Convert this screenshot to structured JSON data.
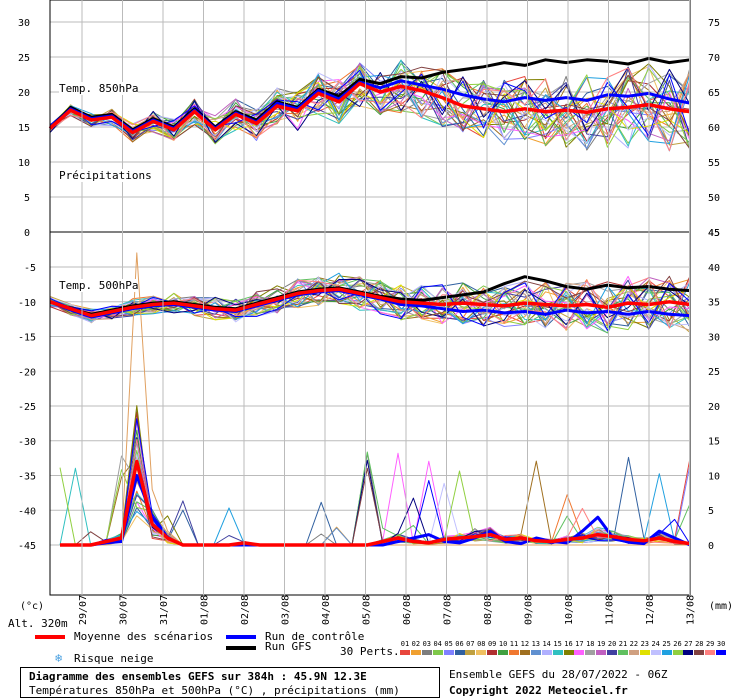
{
  "chart_data": {
    "type": "line",
    "x_dates": [
      "29/07",
      "30/07",
      "31/07",
      "01/08",
      "02/08",
      "03/08",
      "04/08",
      "05/08",
      "06/08",
      "07/08",
      "08/08",
      "09/08",
      "10/08",
      "11/08",
      "12/08",
      "13/08"
    ],
    "upper_panel": {
      "label": "Temp. 850hPa",
      "left_ticks": [
        "30",
        "25",
        "20",
        "15",
        "10",
        "5",
        "0"
      ],
      "right_ticks": [
        "75",
        "70",
        "65",
        "60",
        "55",
        "50",
        "45"
      ],
      "ylim_left": [
        0,
        30
      ],
      "mean": [
        14.8,
        17.4,
        16,
        16.4,
        14.2,
        15.8,
        14.6,
        17.2,
        14.6,
        16.8,
        15.5,
        18,
        17.3,
        19.8,
        18.6,
        21.2,
        20,
        20.8,
        20.2,
        19.2,
        18,
        17.6,
        17.2,
        17.6,
        17.2,
        17.4,
        17.1,
        17.6,
        17.8,
        18.2,
        17.6,
        17.2
      ],
      "control": [
        14.8,
        17.6,
        16.2,
        16.6,
        14.4,
        16,
        14.8,
        17.4,
        14.8,
        17,
        15.7,
        18.4,
        17.6,
        20.2,
        19,
        21.4,
        20.6,
        21.6,
        21,
        20.4,
        19.6,
        19,
        18.6,
        19.2,
        18.8,
        19.2,
        18.8,
        19.6,
        19.4,
        19.8,
        19,
        18.4
      ],
      "gfs": [
        14.8,
        17.8,
        16.4,
        16.8,
        14.6,
        16.2,
        15,
        17.6,
        15,
        17.2,
        16,
        18.6,
        17.8,
        20.4,
        19.4,
        21.8,
        21.2,
        22.2,
        22,
        22.8,
        23.2,
        23.6,
        24.2,
        23.8,
        24.6,
        24.2,
        24.6,
        24.4,
        24,
        24.8,
        24.2,
        24.6
      ]
    },
    "lower_panel": {
      "label_temp": "Temp. 500hPa",
      "label_precip": "Précipitations",
      "left_ticks": [
        "-5",
        "-10",
        "-15",
        "-20",
        "-25",
        "-30",
        "-35",
        "-40",
        "-45"
      ],
      "right_ticks": [
        "45",
        "40",
        "35",
        "30",
        "25",
        "20",
        "15",
        "10",
        "5",
        "0"
      ],
      "ylim_left": [
        -45,
        -5
      ],
      "ylim_right_mm": [
        0,
        45
      ],
      "mean_t500": [
        -10,
        -11,
        -12,
        -11.4,
        -10.8,
        -10.4,
        -10.2,
        -10.6,
        -11,
        -11.2,
        -10.4,
        -9.6,
        -8.8,
        -8.4,
        -8.2,
        -8.8,
        -9.4,
        -10,
        -10.2,
        -10.4,
        -10.2,
        -10.4,
        -10.6,
        -10.2,
        -10.4,
        -10.6,
        -10.4,
        -10.8,
        -10.2,
        -10.4,
        -10,
        -10.4
      ],
      "control_t500": [
        -10,
        -11.2,
        -12.2,
        -11.6,
        -11,
        -10.6,
        -10.4,
        -10.8,
        -11.2,
        -11.4,
        -10.6,
        -9.8,
        -9,
        -8.6,
        -8.4,
        -9,
        -9.6,
        -10.4,
        -10.6,
        -11,
        -11.4,
        -11.2,
        -11.6,
        -11.4,
        -11.8,
        -11.2,
        -11.6,
        -11.4,
        -11.8,
        -11.4,
        -11.8,
        -12
      ],
      "gfs_t500": [
        -10,
        -11,
        -11.8,
        -11.2,
        -10.6,
        -10.2,
        -10,
        -10.4,
        -10.8,
        -11,
        -10.2,
        -9.4,
        -8.6,
        -8.2,
        -8,
        -8.6,
        -9.2,
        -9.6,
        -9.8,
        -9.4,
        -9,
        -8.6,
        -7.4,
        -6.4,
        -7,
        -7.8,
        -8.2,
        -7.6,
        -8,
        -7.8,
        -8.2,
        -8.4
      ],
      "mean_precip_mm": [
        0,
        0,
        0,
        0.5,
        1,
        12,
        3,
        1,
        0,
        0,
        0,
        0,
        0.3,
        0,
        0,
        0,
        0,
        0,
        0,
        0,
        0,
        0.5,
        1,
        0.5,
        0.3,
        0.8,
        1,
        1.2,
        1.5,
        0.8,
        1,
        0.6,
        0.5,
        0.8,
        1,
        1.5,
        1.2,
        0.8,
        0.6,
        1,
        0.5,
        0.2
      ],
      "control_precip_mm": [
        0,
        0,
        0,
        0.3,
        0.5,
        10,
        4,
        1,
        0,
        0,
        0,
        0,
        0,
        0,
        0,
        0,
        0,
        0,
        0,
        0,
        0,
        0,
        0.5,
        1,
        1.5,
        0.5,
        0.3,
        1,
        2,
        0.5,
        0.2,
        1,
        0.5,
        0.3,
        2,
        4,
        1,
        0.4,
        0.2,
        2,
        1,
        0
      ],
      "spike_member_precip_mm": [
        0,
        0,
        0,
        0,
        0.5,
        42,
        8,
        2,
        0,
        0,
        0,
        0,
        0,
        0,
        0,
        0,
        0,
        0,
        0,
        0,
        0,
        0,
        0,
        0,
        0,
        0,
        0,
        0,
        0,
        0,
        0,
        0,
        0,
        0,
        0,
        0,
        0,
        0,
        0,
        0,
        0,
        0
      ]
    },
    "units_left": "(°c)",
    "units_right": "(mm)",
    "altitude": "Alt. 320m"
  },
  "legend": {
    "mean": "Moyenne des scénarios",
    "control": "Run de contrôle",
    "gfs": "Run GFS",
    "snow": "Risque neige",
    "perts": "30 Perts.",
    "mean_color": "#ff0000",
    "control_color": "#0000ff",
    "gfs_color": "#000000"
  },
  "perturbations": [
    "01",
    "02",
    "03",
    "04",
    "05",
    "06",
    "07",
    "08",
    "09",
    "10",
    "11",
    "12",
    "13",
    "14",
    "15",
    "16",
    "17",
    "18",
    "19",
    "20",
    "21",
    "22",
    "23",
    "24",
    "25",
    "26",
    "27",
    "28",
    "29",
    "30"
  ],
  "perturbation_colors": [
    "#e8463c",
    "#f0a030",
    "#7d7d7d",
    "#7ec84a",
    "#8080ff",
    "#3060a0",
    "#c0a040",
    "#f0c060",
    "#b03030",
    "#40a040",
    "#f07830",
    "#a07020",
    "#6090d0",
    "#b0b0ff",
    "#30c0c0",
    "#808000",
    "#ff60ff",
    "#a0a0a0",
    "#c060c0",
    "#4040a0",
    "#60c060",
    "#d0a080",
    "#e0e000",
    "#c0c0ff",
    "#20a0e0",
    "#90d040",
    "#000080",
    "#804040",
    "#ff8080",
    "#0000ff"
  ],
  "footer": {
    "title": "Diagramme des ensembles GEFS sur 384h : 45.9N 12.3E",
    "subtitle": "Températures 850hPa et 500hPa (°C) , précipitations (mm)",
    "run": "Ensemble GEFS du 28/07/2022 - 06Z",
    "copyright": "Copyright 2022 Meteociel.fr"
  }
}
